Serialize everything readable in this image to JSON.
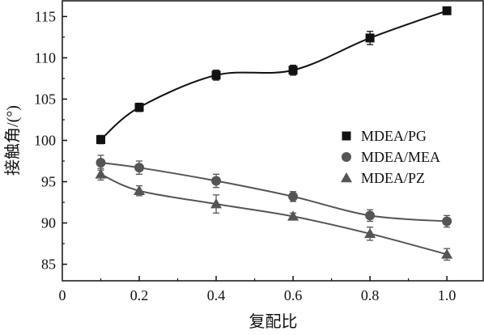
{
  "chart_data": {
    "type": "line",
    "xlabel": "复配比",
    "ylabel": "接触角/(°)",
    "xlim": [
      0,
      1.0
    ],
    "ylim": [
      83,
      117
    ],
    "x_ticks": [
      "0",
      "0.2",
      "0.4",
      "0.6",
      "0.8",
      "1.0"
    ],
    "y_ticks": [
      "85",
      "90",
      "95",
      "100",
      "105",
      "110",
      "115"
    ],
    "grid": false,
    "legend_position": "middle-right",
    "series": [
      {
        "name": "MDEA/PG",
        "marker": "square",
        "color": "#111111",
        "x": [
          0.1,
          0.2,
          0.4,
          0.6,
          0.8,
          1.0
        ],
        "y": [
          100.1,
          104.0,
          107.9,
          108.5,
          112.4,
          115.7
        ],
        "err": [
          0.5,
          0.5,
          0.6,
          0.6,
          0.8,
          0.4
        ]
      },
      {
        "name": "MDEA/MEA",
        "marker": "circle",
        "color": "#555555",
        "x": [
          0.1,
          0.2,
          0.4,
          0.6,
          0.8,
          1.0
        ],
        "y": [
          97.3,
          96.7,
          95.1,
          93.2,
          90.9,
          90.2
        ],
        "err": [
          0.9,
          0.8,
          0.8,
          0.6,
          0.7,
          0.7
        ]
      },
      {
        "name": "MDEA/PZ",
        "marker": "triangle",
        "color": "#555555",
        "x": [
          0.1,
          0.2,
          0.4,
          0.6,
          0.8,
          1.0
        ],
        "y": [
          95.9,
          93.9,
          92.3,
          90.8,
          88.7,
          86.2
        ],
        "err": [
          0.7,
          0.6,
          1.1,
          0.4,
          0.8,
          0.7
        ]
      }
    ]
  }
}
